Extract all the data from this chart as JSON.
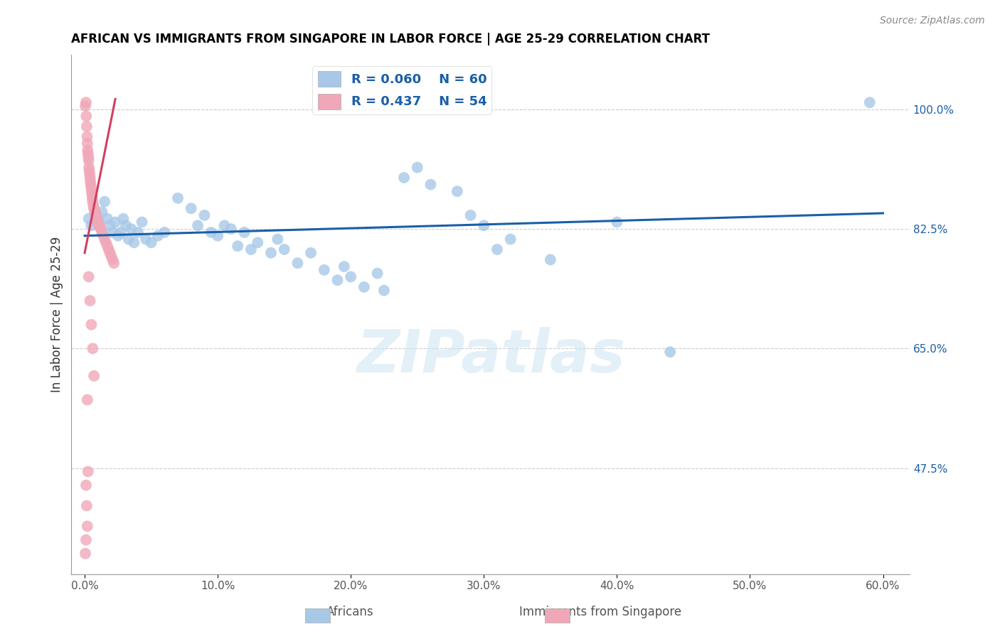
{
  "title": "AFRICAN VS IMMIGRANTS FROM SINGAPORE IN LABOR FORCE | AGE 25-29 CORRELATION CHART",
  "source": "Source: ZipAtlas.com",
  "xlabel_ticks": [
    "0.0%",
    "10.0%",
    "20.0%",
    "30.0%",
    "40.0%",
    "50.0%",
    "60.0%"
  ],
  "xlabel_vals": [
    0.0,
    10.0,
    20.0,
    30.0,
    40.0,
    50.0,
    60.0
  ],
  "ylabel_ticks": [
    "47.5%",
    "65.0%",
    "82.5%",
    "100.0%"
  ],
  "ylabel_vals": [
    47.5,
    65.0,
    82.5,
    100.0
  ],
  "ylabel_label": "In Labor Force | Age 25-29",
  "xlim": [
    -1.0,
    62
  ],
  "ylim": [
    32,
    108
  ],
  "legend_R_blue": "R = 0.060",
  "legend_N_blue": "N = 60",
  "legend_R_pink": "R = 0.437",
  "legend_N_pink": "N = 54",
  "blue_color": "#a8c8e8",
  "pink_color": "#f0a8b8",
  "trend_blue": "#1a5fa8",
  "trend_pink": "#d04060",
  "watermark": "ZIPatlas",
  "blue_scatter": [
    [
      0.3,
      84.0
    ],
    [
      0.5,
      83.0
    ],
    [
      0.7,
      85.5
    ],
    [
      0.9,
      84.5
    ],
    [
      1.1,
      83.5
    ],
    [
      1.3,
      85.0
    ],
    [
      1.5,
      86.5
    ],
    [
      1.7,
      84.0
    ],
    [
      1.9,
      83.0
    ],
    [
      2.1,
      82.0
    ],
    [
      2.3,
      83.5
    ],
    [
      2.5,
      81.5
    ],
    [
      2.7,
      82.0
    ],
    [
      2.9,
      84.0
    ],
    [
      3.1,
      83.0
    ],
    [
      3.3,
      81.0
    ],
    [
      3.5,
      82.5
    ],
    [
      3.7,
      80.5
    ],
    [
      4.0,
      82.0
    ],
    [
      4.3,
      83.5
    ],
    [
      4.6,
      81.0
    ],
    [
      5.0,
      80.5
    ],
    [
      5.5,
      81.5
    ],
    [
      6.0,
      82.0
    ],
    [
      7.0,
      87.0
    ],
    [
      8.0,
      85.5
    ],
    [
      8.5,
      83.0
    ],
    [
      9.0,
      84.5
    ],
    [
      9.5,
      82.0
    ],
    [
      10.0,
      81.5
    ],
    [
      10.5,
      83.0
    ],
    [
      11.0,
      82.5
    ],
    [
      11.5,
      80.0
    ],
    [
      12.0,
      82.0
    ],
    [
      12.5,
      79.5
    ],
    [
      13.0,
      80.5
    ],
    [
      14.0,
      79.0
    ],
    [
      14.5,
      81.0
    ],
    [
      15.0,
      79.5
    ],
    [
      16.0,
      77.5
    ],
    [
      17.0,
      79.0
    ],
    [
      18.0,
      76.5
    ],
    [
      19.0,
      75.0
    ],
    [
      19.5,
      77.0
    ],
    [
      20.0,
      75.5
    ],
    [
      21.0,
      74.0
    ],
    [
      22.0,
      76.0
    ],
    [
      22.5,
      73.5
    ],
    [
      24.0,
      90.0
    ],
    [
      25.0,
      91.5
    ],
    [
      26.0,
      89.0
    ],
    [
      28.0,
      88.0
    ],
    [
      29.0,
      84.5
    ],
    [
      30.0,
      83.0
    ],
    [
      31.0,
      79.5
    ],
    [
      32.0,
      81.0
    ],
    [
      35.0,
      78.0
    ],
    [
      40.0,
      83.5
    ],
    [
      44.0,
      64.5
    ],
    [
      59.0,
      101.0
    ]
  ],
  "pink_scatter": [
    [
      0.05,
      100.5
    ],
    [
      0.1,
      101.0
    ],
    [
      0.12,
      99.0
    ],
    [
      0.15,
      97.5
    ],
    [
      0.18,
      96.0
    ],
    [
      0.2,
      95.0
    ],
    [
      0.22,
      94.0
    ],
    [
      0.25,
      93.5
    ],
    [
      0.28,
      93.0
    ],
    [
      0.3,
      92.5
    ],
    [
      0.32,
      91.5
    ],
    [
      0.35,
      91.0
    ],
    [
      0.38,
      90.5
    ],
    [
      0.4,
      90.0
    ],
    [
      0.43,
      89.5
    ],
    [
      0.45,
      89.0
    ],
    [
      0.5,
      88.5
    ],
    [
      0.52,
      88.0
    ],
    [
      0.55,
      87.5
    ],
    [
      0.58,
      87.0
    ],
    [
      0.6,
      86.5
    ],
    [
      0.65,
      86.0
    ],
    [
      0.7,
      85.5
    ],
    [
      0.75,
      85.0
    ],
    [
      0.8,
      85.0
    ],
    [
      0.85,
      84.5
    ],
    [
      0.9,
      84.0
    ],
    [
      0.95,
      83.5
    ],
    [
      1.0,
      83.5
    ],
    [
      1.05,
      83.0
    ],
    [
      1.1,
      83.0
    ],
    [
      1.2,
      82.5
    ],
    [
      1.3,
      82.0
    ],
    [
      1.4,
      81.5
    ],
    [
      1.5,
      81.0
    ],
    [
      1.6,
      80.5
    ],
    [
      1.7,
      80.0
    ],
    [
      1.8,
      79.5
    ],
    [
      1.9,
      79.0
    ],
    [
      2.0,
      78.5
    ],
    [
      2.1,
      78.0
    ],
    [
      2.2,
      77.5
    ],
    [
      0.3,
      75.5
    ],
    [
      0.4,
      72.0
    ],
    [
      0.5,
      68.5
    ],
    [
      0.6,
      65.0
    ],
    [
      0.7,
      61.0
    ],
    [
      0.2,
      57.5
    ],
    [
      0.25,
      47.0
    ],
    [
      0.1,
      45.0
    ],
    [
      0.15,
      42.0
    ],
    [
      0.2,
      39.0
    ],
    [
      0.1,
      37.0
    ],
    [
      0.05,
      35.0
    ]
  ],
  "blue_trend_x": [
    0.0,
    60.0
  ],
  "blue_trend_y": [
    81.5,
    84.8
  ],
  "pink_trend_x": [
    0.0,
    2.3
  ],
  "pink_trend_y": [
    79.0,
    101.5
  ]
}
